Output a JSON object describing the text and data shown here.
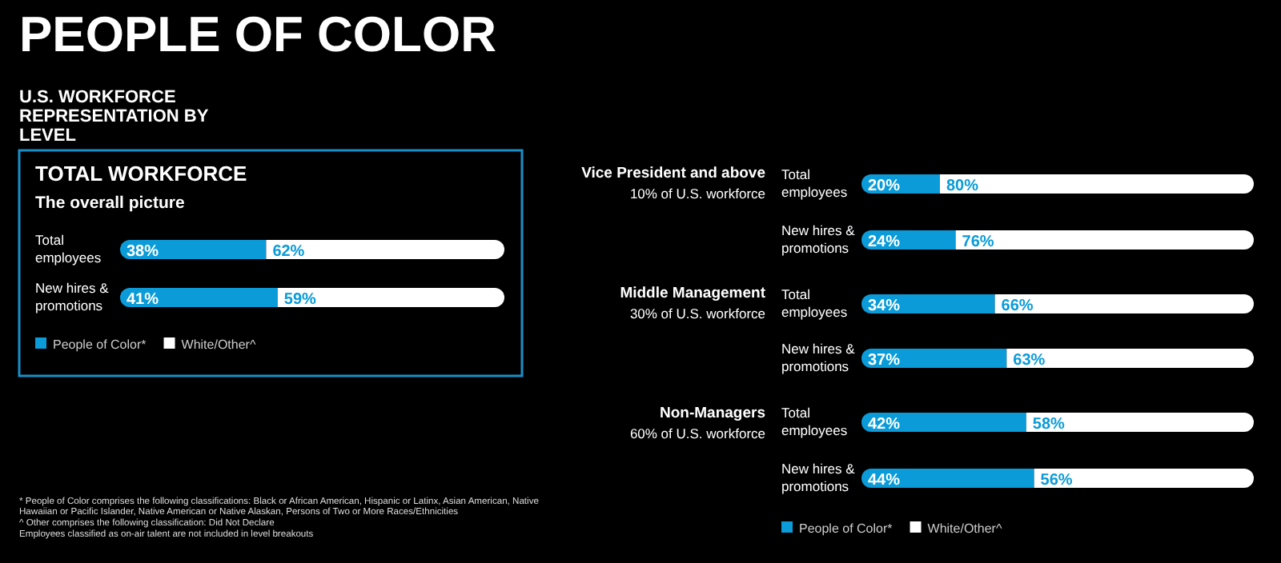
{
  "chart_data": [
    {
      "type": "other",
      "title": "PEOPLE OF COLOR",
      "subtitle": "U.S. WORKFORCE REPRESENTATION BY LEVEL",
      "annotations": [
        "* People of Color comprises the following classifications: Black or African American, Hispanic or Latinx, Asian American, Native Hawaiian or Pacific Islander, Native American or Native Alaskan, Persons of Two or More Races/Ethnicities",
        "^ Other comprises the following classification: Did Not Declare",
        "Employees classified as on-air talent are not included in level breakouts"
      ]
    },
    {
      "type": "bar",
      "orientation": "horizontal",
      "stacked": true,
      "title": "TOTAL WORKFORCE",
      "subtitle": "The overall picture",
      "categories": [
        "Total employees",
        "New hires & promotions"
      ],
      "xlim": [
        0,
        100
      ],
      "tick_labels": "y",
      "legend": "bottom left",
      "series": [
        {
          "name": "People of Color*",
          "color": "#0a9bd8",
          "values": [
            38,
            41
          ],
          "value_labels": [
            "38%",
            "41%"
          ]
        },
        {
          "name": "White/Other^",
          "color": "#ffffff",
          "values": [
            62,
            59
          ],
          "value_labels": [
            "62%",
            "59%"
          ]
        }
      ]
    },
    {
      "type": "bar",
      "orientation": "horizontal",
      "stacked": true,
      "title": "Vice President and above",
      "subtitle": "10% of U.S. workforce",
      "categories": [
        "Total employees",
        "New hires & promotions"
      ],
      "xlim": [
        0,
        100
      ],
      "tick_labels": "y",
      "series": [
        {
          "color": "#0a9bd8",
          "values": [
            20,
            24
          ],
          "value_labels": [
            "20%",
            "24%"
          ]
        },
        {
          "color": "#ffffff",
          "values": [
            80,
            76
          ],
          "value_labels": [
            "80%",
            "76%"
          ]
        }
      ]
    },
    {
      "type": "bar",
      "orientation": "horizontal",
      "stacked": true,
      "title": "Middle Management",
      "subtitle": "30% of U.S. workforce",
      "categories": [
        "Total employees",
        "New hires & promotions"
      ],
      "xlim": [
        0,
        100
      ],
      "tick_labels": "y",
      "series": [
        {
          "color": "#0a9bd8",
          "values": [
            34,
            37
          ],
          "value_labels": [
            "34%",
            "37%"
          ]
        },
        {
          "color": "#ffffff",
          "values": [
            66,
            63
          ],
          "value_labels": [
            "66%",
            "63%"
          ]
        }
      ]
    },
    {
      "type": "bar",
      "orientation": "horizontal",
      "stacked": true,
      "title": "Non-Managers",
      "subtitle": "60% of U.S. workforce",
      "categories": [
        "Total employees",
        "New hires & promotions"
      ],
      "xlim": [
        0,
        100
      ],
      "tick_labels": "y",
      "legend": "bottom left",
      "series": [
        {
          "name": "People of Color*",
          "color": "#0a9bd8",
          "values": [
            42,
            44
          ],
          "value_labels": [
            "42%",
            "44%"
          ]
        },
        {
          "name": "White/Other^",
          "color": "#ffffff",
          "values": [
            58,
            56
          ],
          "value_labels": [
            "58%",
            "56%"
          ]
        }
      ]
    }
  ]
}
